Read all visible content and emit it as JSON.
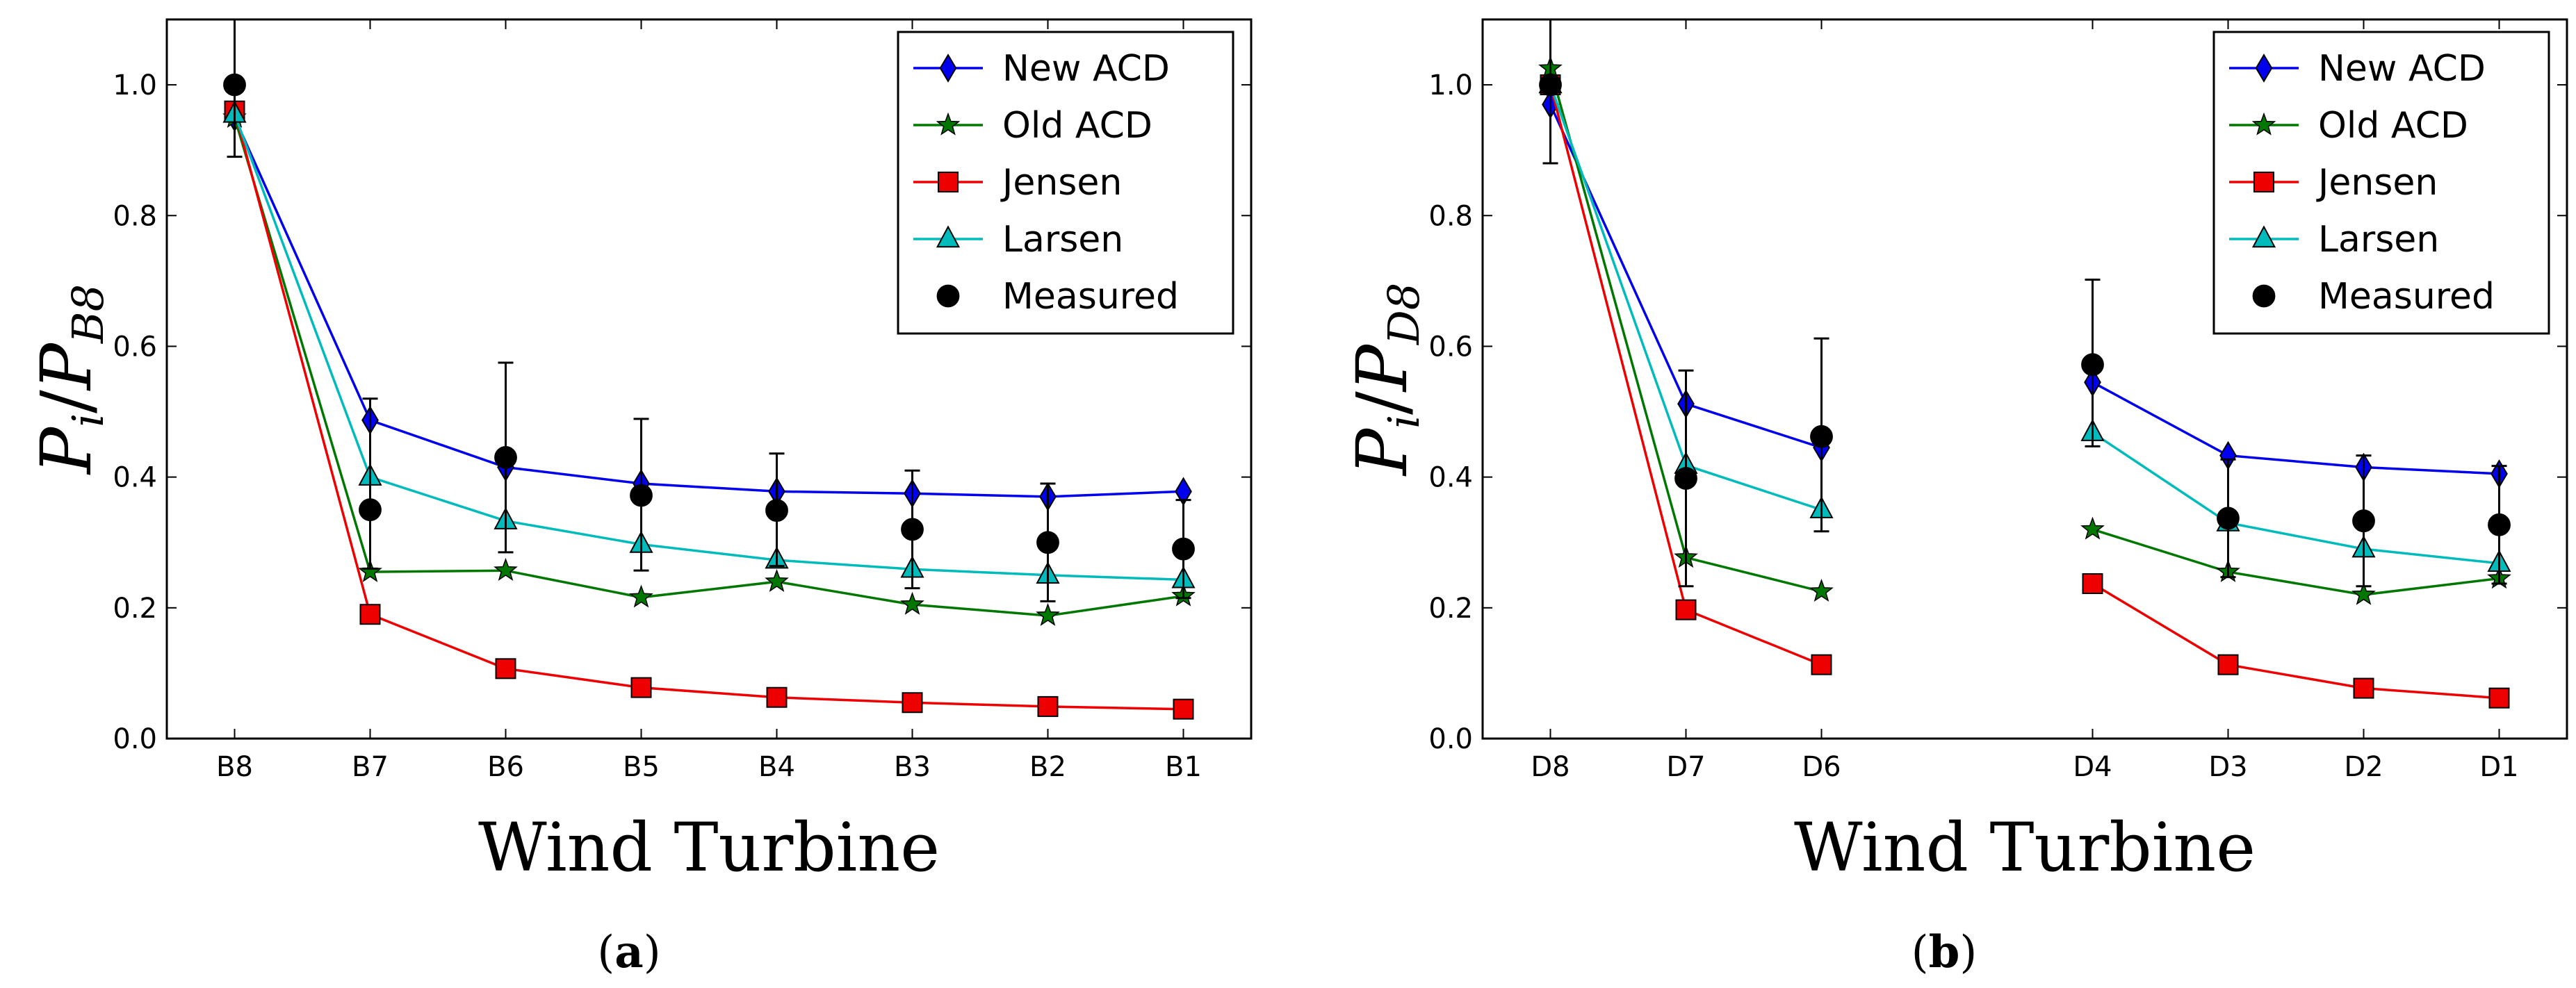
{
  "chart_data": [
    {
      "type": "line",
      "panel_label": "a",
      "xlabel": "Wind Turbine",
      "ylabel": {
        "base": "P",
        "sub": "i",
        "sep": "/",
        "base2": "P",
        "sub2": "B8"
      },
      "categories": [
        "B8",
        "B7",
        "B6",
        "B5",
        "B4",
        "B3",
        "B2",
        "B1"
      ],
      "x_positions": [
        0,
        1,
        2,
        3,
        4,
        5,
        6,
        7
      ],
      "xlim": [
        -0.5,
        7.5
      ],
      "ylim": [
        0.0,
        1.1
      ],
      "yticks": [
        "0.0",
        "0.2",
        "0.4",
        "0.6",
        "0.8",
        "1.0"
      ],
      "legend_position": "top-right",
      "series": [
        {
          "name": "New ACD",
          "color": "#0000ee",
          "marker": "diamond",
          "values": [
            0.95,
            0.487,
            0.415,
            0.39,
            0.378,
            0.375,
            0.37,
            0.378
          ]
        },
        {
          "name": "Old ACD",
          "color": "#007700",
          "marker": "star",
          "values": [
            0.95,
            0.255,
            0.257,
            0.216,
            0.24,
            0.205,
            0.188,
            0.218
          ]
        },
        {
          "name": "Jensen",
          "color": "#ee0000",
          "marker": "square",
          "values": [
            0.96,
            0.19,
            0.107,
            0.078,
            0.063,
            0.055,
            0.049,
            0.045
          ]
        },
        {
          "name": "Larsen",
          "color": "#00bbbb",
          "marker": "triangle",
          "values": [
            0.955,
            0.4,
            0.333,
            0.297,
            0.273,
            0.259,
            0.25,
            0.243
          ]
        },
        {
          "name": "Measured",
          "color": "#000000",
          "marker": "circle",
          "line": false,
          "values": [
            1.0,
            0.35,
            0.43,
            0.372,
            0.349,
            0.32,
            0.3,
            0.29
          ],
          "err_low": [
            0.11,
            0.09,
            0.145,
            0.115,
            0.085,
            0.09,
            0.09,
            0.075
          ],
          "err_high": [
            0.12,
            0.17,
            0.145,
            0.117,
            0.087,
            0.09,
            0.09,
            0.075
          ]
        }
      ]
    },
    {
      "type": "line",
      "panel_label": "b",
      "xlabel": "Wind Turbine",
      "ylabel": {
        "base": "P",
        "sub": "i",
        "sep": "/",
        "base2": "P",
        "sub2": "D8"
      },
      "categories": [
        "D8",
        "D7",
        "D6",
        "D4",
        "D3",
        "D2",
        "D1"
      ],
      "x_positions": [
        0,
        1,
        2,
        4,
        5,
        6,
        7
      ],
      "xlim": [
        -0.5,
        7.5
      ],
      "ylim": [
        0.0,
        1.1
      ],
      "yticks": [
        "0.0",
        "0.2",
        "0.4",
        "0.6",
        "0.8",
        "1.0"
      ],
      "legend_position": "top-right",
      "series": [
        {
          "name": "New ACD",
          "color": "#0000ee",
          "marker": "diamond",
          "values": [
            0.97,
            0.512,
            0.445,
            0.545,
            0.433,
            0.415,
            0.405
          ]
        },
        {
          "name": "Old ACD",
          "color": "#007700",
          "marker": "star",
          "values": [
            1.025,
            0.277,
            0.225,
            0.32,
            0.255,
            0.22,
            0.245
          ]
        },
        {
          "name": "Jensen",
          "color": "#ee0000",
          "marker": "square",
          "values": [
            1.0,
            0.197,
            0.113,
            0.237,
            0.113,
            0.077,
            0.062
          ]
        },
        {
          "name": "Larsen",
          "color": "#00bbbb",
          "marker": "triangle",
          "values": [
            1.0,
            0.418,
            0.35,
            0.468,
            0.33,
            0.29,
            0.268
          ]
        },
        {
          "name": "Measured",
          "color": "#000000",
          "marker": "circle",
          "line": false,
          "values": [
            1.0,
            0.398,
            0.462,
            0.572,
            0.337,
            0.333,
            0.327
          ],
          "err_low": [
            0.12,
            0.165,
            0.145,
            0.125,
            0.09,
            0.1,
            0.09
          ],
          "err_high": [
            0.1,
            0.165,
            0.15,
            0.13,
            0.09,
            0.1,
            0.09
          ]
        }
      ]
    }
  ]
}
